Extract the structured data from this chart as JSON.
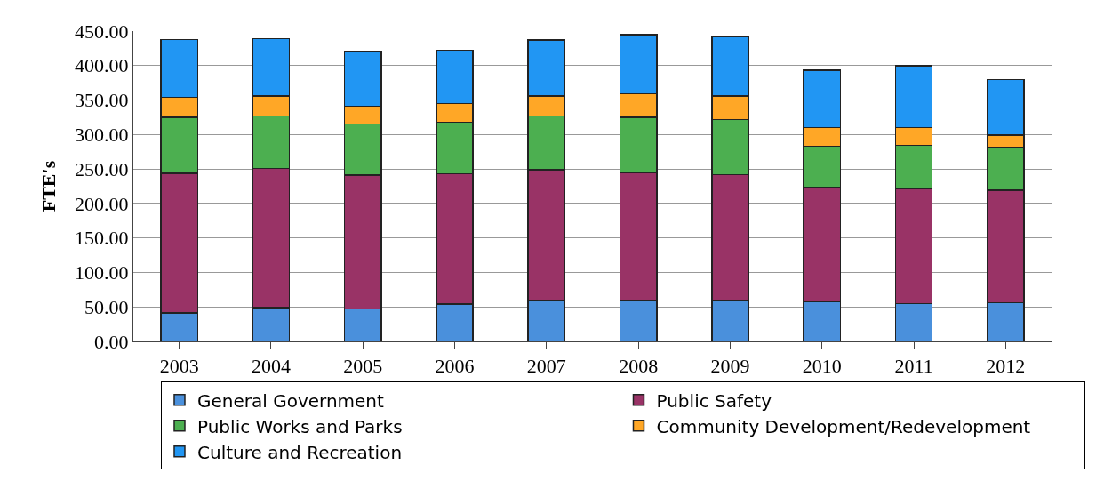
{
  "chart_data": {
    "type": "bar",
    "ylabel": "FTE's",
    "categories": [
      "2003",
      "2004",
      "2005",
      "2006",
      "2007",
      "2008",
      "2009",
      "2010",
      "2011",
      "2012"
    ],
    "stacked": true,
    "series": [
      {
        "name": "General Government",
        "color": "#4a90dc",
        "values": [
          41,
          49,
          47,
          54,
          60,
          60,
          60,
          58,
          55,
          56
        ]
      },
      {
        "name": "Public Safety",
        "color": "#993366",
        "values": [
          203,
          202,
          194,
          189,
          189,
          185,
          182,
          165,
          166,
          163
        ]
      },
      {
        "name": "Public Works and Parks",
        "color": "#4caf50",
        "values": [
          81,
          76,
          74,
          75,
          78,
          80,
          80,
          60,
          63,
          62
        ]
      },
      {
        "name": "Community Development/Redevelopment",
        "color": "#ffa726",
        "values": [
          29,
          29,
          26,
          27,
          29,
          34,
          34,
          27,
          26,
          18
        ]
      },
      {
        "name": "Culture and Recreation",
        "color": "#2196f3",
        "values": [
          84,
          83,
          80,
          77,
          81,
          86,
          86,
          83,
          90,
          81
        ]
      }
    ],
    "ylim": [
      0,
      450
    ],
    "yticks": [
      {
        "value": 0,
        "label": "0.00"
      },
      {
        "value": 50,
        "label": "50.00"
      },
      {
        "value": 100,
        "label": "100.00"
      },
      {
        "value": 150,
        "label": "150.00"
      },
      {
        "value": 200,
        "label": "200.00"
      },
      {
        "value": 250,
        "label": "250.00"
      },
      {
        "value": 300,
        "label": "300.00"
      },
      {
        "value": 350,
        "label": "350.00"
      },
      {
        "value": 400,
        "label": "400.00"
      },
      {
        "value": 450,
        "label": "450.00"
      }
    ],
    "grid": "y",
    "legend": "bottom"
  }
}
